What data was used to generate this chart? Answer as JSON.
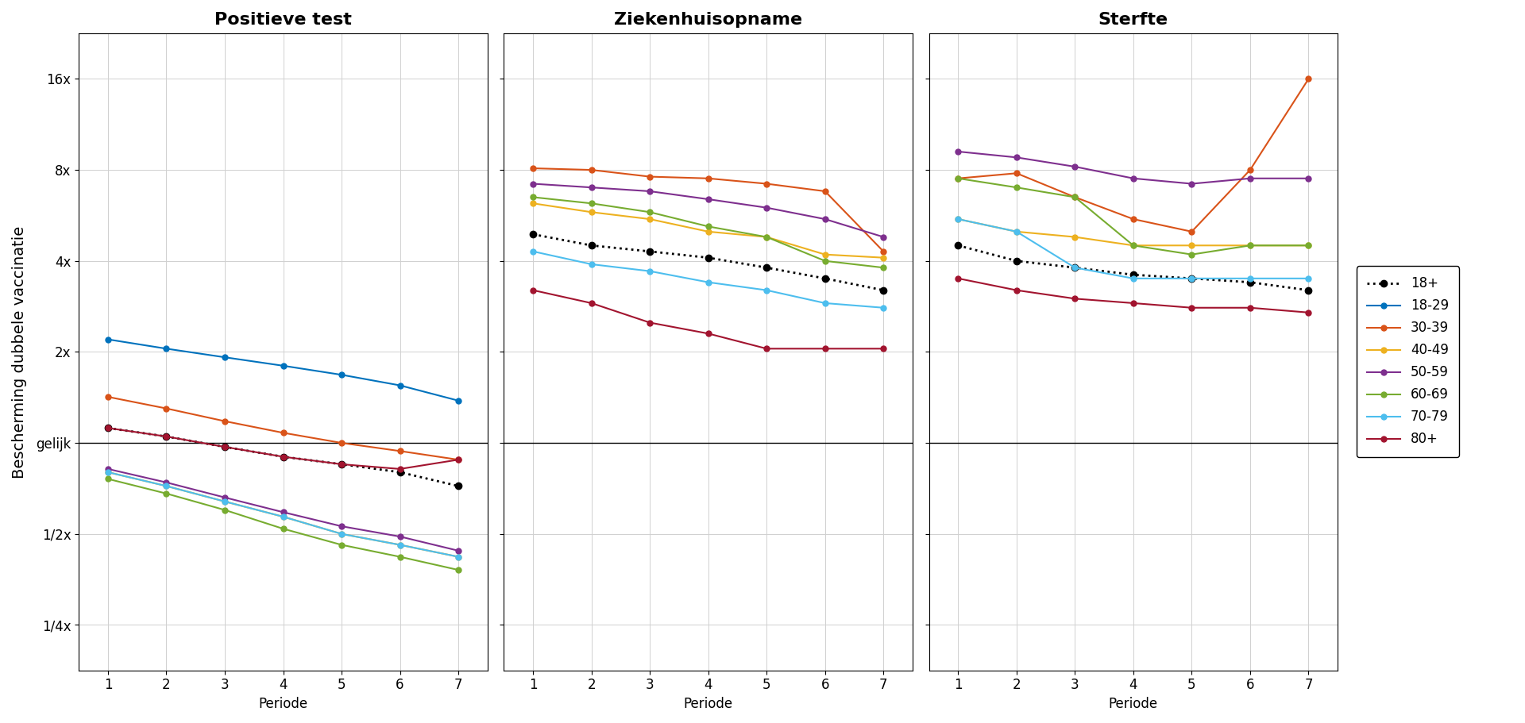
{
  "titles": [
    "Positieve test",
    "Ziekenhuisopname",
    "Sterfte"
  ],
  "ylabel": "Bescherming dubbele vaccinatie",
  "xlabel": "Periode",
  "periods": [
    1,
    2,
    3,
    4,
    5,
    6,
    7
  ],
  "yticks_log2": [
    -2,
    -1,
    0,
    1,
    2,
    3,
    4
  ],
  "ytick_labels": [
    "1/4x",
    "1/2x",
    "gelijk",
    "2x",
    "4x",
    "8x",
    "16x"
  ],
  "series": {
    "18+": {
      "color": "#000000",
      "linestyle": "dotted",
      "marker": "o",
      "markersize": 6,
      "linewidth": 2,
      "positieve_test": [
        1.12,
        1.05,
        0.97,
        0.9,
        0.85,
        0.8,
        0.72
      ],
      "ziekenhuisopname": [
        4.9,
        4.5,
        4.3,
        4.1,
        3.8,
        3.5,
        3.2
      ],
      "sterfte": [
        4.5,
        4.0,
        3.8,
        3.6,
        3.5,
        3.4,
        3.2
      ]
    },
    "18-29": {
      "color": "#0072BD",
      "linestyle": "solid",
      "marker": "o",
      "markersize": 5,
      "linewidth": 1.5,
      "positieve_test": [
        2.2,
        2.05,
        1.92,
        1.8,
        1.68,
        1.55,
        1.38
      ],
      "ziekenhuisopname": [
        null,
        null,
        null,
        null,
        null,
        null,
        null
      ],
      "sterfte": [
        null,
        null,
        null,
        null,
        null,
        null,
        null
      ]
    },
    "30-39": {
      "color": "#D95319",
      "linestyle": "solid",
      "marker": "o",
      "markersize": 5,
      "linewidth": 1.5,
      "positieve_test": [
        1.42,
        1.3,
        1.18,
        1.08,
        1.0,
        0.94,
        0.88
      ],
      "ziekenhuisopname": [
        8.1,
        8.0,
        7.6,
        7.5,
        7.2,
        6.8,
        4.3
      ],
      "sterfte": [
        7.5,
        7.8,
        6.5,
        5.5,
        5.0,
        8.0,
        16.0
      ]
    },
    "40-49": {
      "color": "#EDB120",
      "linestyle": "solid",
      "marker": "o",
      "markersize": 5,
      "linewidth": 1.5,
      "positieve_test": [
        0.8,
        0.72,
        0.64,
        0.57,
        0.5,
        0.46,
        0.42
      ],
      "ziekenhuisopname": [
        6.2,
        5.8,
        5.5,
        5.0,
        4.8,
        4.2,
        4.1
      ],
      "sterfte": [
        5.5,
        5.0,
        4.8,
        4.5,
        4.5,
        4.5,
        4.5
      ]
    },
    "50-59": {
      "color": "#7E2F8E",
      "linestyle": "solid",
      "marker": "o",
      "markersize": 5,
      "linewidth": 1.5,
      "positieve_test": [
        0.82,
        0.74,
        0.66,
        0.59,
        0.53,
        0.49,
        0.44
      ],
      "ziekenhuisopname": [
        7.2,
        7.0,
        6.8,
        6.4,
        6.0,
        5.5,
        4.8
      ],
      "sterfte": [
        9.2,
        8.8,
        8.2,
        7.5,
        7.2,
        7.5,
        7.5
      ]
    },
    "60-69": {
      "color": "#77AC30",
      "linestyle": "solid",
      "marker": "o",
      "markersize": 5,
      "linewidth": 1.5,
      "positieve_test": [
        0.76,
        0.68,
        0.6,
        0.52,
        0.46,
        0.42,
        0.38
      ],
      "ziekenhuisopname": [
        6.5,
        6.2,
        5.8,
        5.2,
        4.8,
        4.0,
        3.8
      ],
      "sterfte": [
        7.5,
        7.0,
        6.5,
        4.5,
        4.2,
        4.5,
        4.5
      ]
    },
    "70-79": {
      "color": "#4DBEEE",
      "linestyle": "solid",
      "marker": "o",
      "markersize": 5,
      "linewidth": 1.5,
      "positieve_test": [
        0.8,
        0.72,
        0.64,
        0.57,
        0.5,
        0.46,
        0.42
      ],
      "ziekenhuisopname": [
        4.3,
        3.9,
        3.7,
        3.4,
        3.2,
        2.9,
        2.8
      ],
      "sterfte": [
        5.5,
        5.0,
        3.8,
        3.5,
        3.5,
        3.5,
        3.5
      ]
    },
    "80+": {
      "color": "#A2142F",
      "linestyle": "solid",
      "marker": "o",
      "markersize": 5,
      "linewidth": 1.5,
      "positieve_test": [
        1.12,
        1.05,
        0.97,
        0.9,
        0.85,
        0.82,
        0.88
      ],
      "ziekenhuisopname": [
        3.2,
        2.9,
        2.5,
        2.3,
        2.05,
        2.05,
        2.05
      ],
      "sterfte": [
        3.5,
        3.2,
        3.0,
        2.9,
        2.8,
        2.8,
        2.7
      ]
    }
  },
  "background_color": "#ffffff",
  "grid_color": "#d0d0d0",
  "hline_y": 1.0,
  "ylim_log2": [
    -2.5,
    4.5
  ],
  "fig_width": 19.2,
  "fig_height": 9.11,
  "legend_fontsize": 12,
  "tick_fontsize": 12,
  "title_fontsize": 16,
  "ylabel_fontsize": 14
}
